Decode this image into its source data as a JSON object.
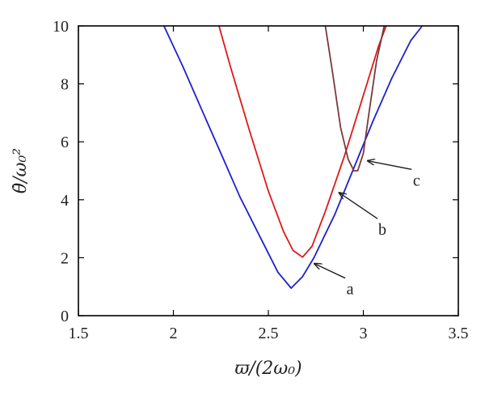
{
  "chart_data": {
    "type": "line",
    "xlabel": "ϖ/(2ω₀)",
    "ylabel": "θ̇/ω₀²",
    "xlim": [
      1.5,
      3.5
    ],
    "ylim": [
      0,
      10
    ],
    "xticks": [
      "1.5",
      "2",
      "2.5",
      "3",
      "3.5"
    ],
    "yticks": [
      "0",
      "2",
      "4",
      "6",
      "8",
      "10"
    ],
    "grid": false,
    "series": [
      {
        "name": "a",
        "color": "#1f1fd0",
        "x": [
          1.95,
          2.05,
          2.15,
          2.25,
          2.35,
          2.45,
          2.55,
          2.62,
          2.68,
          2.74,
          2.85,
          2.95,
          3.05,
          3.15,
          3.25,
          3.31
        ],
        "y": [
          10.0,
          8.6,
          7.1,
          5.6,
          4.1,
          2.8,
          1.5,
          0.95,
          1.35,
          2.0,
          3.5,
          5.1,
          6.7,
          8.2,
          9.5,
          10.0
        ]
      },
      {
        "name": "b",
        "color": "#e01818",
        "x": [
          2.24,
          2.3,
          2.4,
          2.5,
          2.58,
          2.63,
          2.68,
          2.73,
          2.8,
          2.9,
          3.0,
          3.08,
          3.12
        ],
        "y": [
          10.0,
          8.6,
          6.4,
          4.3,
          2.9,
          2.25,
          2.02,
          2.4,
          3.6,
          5.5,
          7.6,
          9.3,
          10.0
        ]
      },
      {
        "name": "c",
        "color": "#7a3a3a",
        "x": [
          2.8,
          2.84,
          2.88,
          2.92,
          2.95,
          2.97,
          3.0,
          3.03,
          3.07,
          3.11
        ],
        "y": [
          10.0,
          8.3,
          6.5,
          5.4,
          5.0,
          5.0,
          5.6,
          7.0,
          8.8,
          10.0
        ]
      }
    ],
    "annotations": [
      {
        "text": "a",
        "point": [
          2.73,
          1.85
        ],
        "label_at": [
          2.93,
          0.85
        ]
      },
      {
        "text": "b",
        "point": [
          2.86,
          4.3
        ],
        "label_at": [
          3.1,
          2.9
        ]
      },
      {
        "text": "c",
        "point": [
          3.01,
          5.4
        ],
        "label_at": [
          3.28,
          4.6
        ]
      }
    ]
  }
}
